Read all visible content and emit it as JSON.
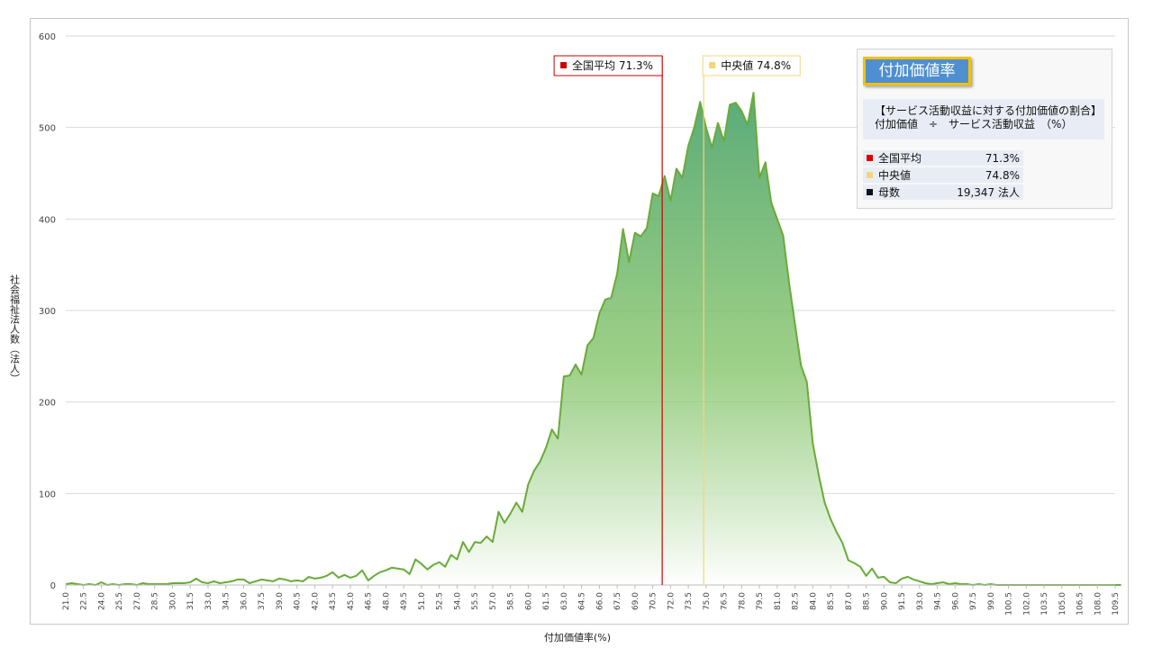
{
  "chart_data": {
    "type": "area",
    "xlabel": "付加価値率(%)",
    "ylabel": "社会福祉法人数（法人）",
    "ylim": [
      0,
      600
    ],
    "yticks": [
      0,
      100,
      200,
      300,
      400,
      500,
      600
    ],
    "x_start": 21.0,
    "x_step": 0.5,
    "x_end": 109.5,
    "tick_every": 3,
    "grid": true,
    "values": [
      1,
      2,
      1,
      0,
      1,
      0,
      3,
      0,
      1,
      0,
      1,
      1,
      0,
      2,
      1,
      1,
      1,
      1,
      2,
      2,
      2,
      3,
      7,
      3,
      2,
      4,
      2,
      3,
      4,
      6,
      6,
      2,
      4,
      6,
      5,
      4,
      7,
      6,
      4,
      5,
      4,
      9,
      7,
      8,
      10,
      14,
      8,
      11,
      8,
      10,
      16,
      5,
      10,
      14,
      16,
      19,
      18,
      17,
      12,
      28,
      23,
      17,
      22,
      25,
      20,
      33,
      28,
      47,
      36,
      47,
      46,
      53,
      47,
      80,
      68,
      78,
      90,
      80,
      110,
      125,
      135,
      150,
      170,
      160,
      228,
      229,
      241,
      230,
      262,
      270,
      297,
      312,
      314,
      340,
      389,
      353,
      385,
      381,
      390,
      428,
      425,
      447,
      420,
      455,
      445,
      480,
      500,
      528,
      500,
      478,
      505,
      485,
      525,
      527,
      518,
      503,
      538,
      445,
      462,
      418,
      400,
      382,
      330,
      285,
      240,
      222,
      155,
      120,
      90,
      72,
      58,
      46,
      27,
      24,
      20,
      10,
      18,
      8,
      9,
      3,
      2,
      7,
      9,
      6,
      4,
      2,
      1,
      2,
      3,
      1,
      2,
      1,
      1,
      0,
      1,
      0,
      1,
      0,
      0,
      0,
      0,
      0,
      0,
      0,
      0,
      0,
      0,
      0,
      0,
      0,
      0,
      0,
      0,
      0,
      0,
      0,
      0,
      0,
      0
    ],
    "reference_lines": [
      {
        "label": "全国平均",
        "value_text": "71.3%",
        "x": 71.3,
        "color": "#cc0000"
      },
      {
        "label": "中央値",
        "value_text": "74.8%",
        "x": 74.8,
        "color": "#f5d57a"
      }
    ]
  },
  "info_panel": {
    "title": "付加価値率",
    "desc_line1": "【サービス活動収益に対する付加価値の割合】",
    "desc_line2": "付加価値　÷　サービス活動収益　（%）",
    "rows": [
      {
        "label": "全国平均",
        "value": "71.3%",
        "color": "#dd0000"
      },
      {
        "label": "中央値",
        "value": "74.8%",
        "color": "#f5d57a"
      },
      {
        "label": "母数",
        "value": "19,347  法人",
        "color": "#111111"
      }
    ]
  },
  "colors": {
    "line": "#6aaa3a",
    "fill_top": "#5aaa7a",
    "fill_mid": "#7cc060",
    "fill_bottom": "#ffffff",
    "grid": "#d9d9d9",
    "axis_text": "#444444"
  }
}
